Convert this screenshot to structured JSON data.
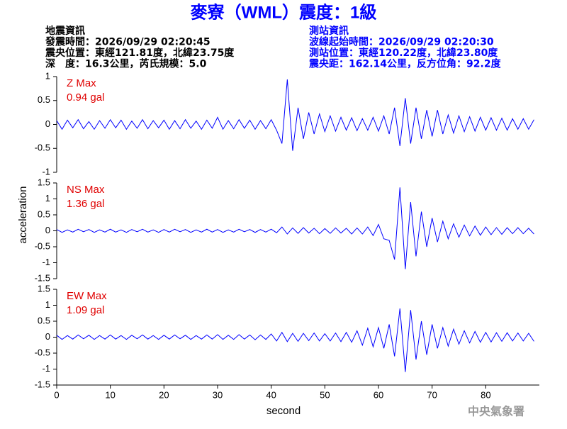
{
  "title": "麥寮（WML）震度：1級",
  "earthquake_info": [
    "地震資訊",
    "發震時間：2026/09/29 02:20:45",
    "震央位置：東經121.81度，北緯23.75度",
    "深　度：16.3公里，芮氏規模：5.0"
  ],
  "station_info": [
    "測站資訊",
    "波線起始時間：2026/09/29 02:20:30",
    "測站位置：東經120.22度，北緯23.80度",
    "震央距：162.14公里，反方位角：92.2度"
  ],
  "y_label": "acceleration",
  "x_label": "second",
  "footer": "中央氣象署",
  "chart_data": [
    {
      "type": "line",
      "annotations": [
        "Z Max",
        "0.94 gal"
      ],
      "annotation_color": "#e00000",
      "xlim": [
        0,
        90
      ],
      "ylim": [
        -1,
        1
      ],
      "yticks": [
        -1,
        -0.5,
        0,
        0.5,
        1
      ],
      "x": [
        0,
        1,
        2,
        3,
        4,
        5,
        6,
        7,
        8,
        9,
        10,
        11,
        12,
        13,
        14,
        15,
        16,
        17,
        18,
        19,
        20,
        21,
        22,
        23,
        24,
        25,
        26,
        27,
        28,
        29,
        30,
        31,
        32,
        33,
        34,
        35,
        36,
        37,
        38,
        39,
        40,
        41,
        42,
        43,
        44,
        45,
        46,
        47,
        48,
        49,
        50,
        51,
        52,
        53,
        54,
        55,
        56,
        57,
        58,
        59,
        60,
        61,
        62,
        63,
        64,
        65,
        66,
        67,
        68,
        69,
        70,
        71,
        72,
        73,
        74,
        75,
        76,
        77,
        78,
        79,
        80,
        81,
        82,
        83,
        84,
        85,
        86,
        87,
        88,
        89
      ],
      "series": [
        {
          "name": "Z",
          "color": "#0000ff",
          "values": [
            0.08,
            -0.1,
            0.09,
            -0.07,
            0.1,
            -0.09,
            0.06,
            -0.1,
            0.08,
            -0.08,
            0.1,
            -0.07,
            0.09,
            -0.1,
            0.07,
            -0.08,
            0.1,
            -0.09,
            0.08,
            -0.07,
            0.09,
            -0.1,
            0.08,
            -0.09,
            0.1,
            -0.08,
            0.07,
            -0.1,
            0.09,
            -0.08,
            0.15,
            -0.1,
            0.08,
            -0.09,
            0.1,
            -0.08,
            0.09,
            -0.1,
            0.08,
            -0.09,
            0.1,
            -0.12,
            -0.4,
            0.94,
            -0.55,
            0.35,
            -0.3,
            0.25,
            -0.2,
            0.22,
            -0.15,
            0.18,
            -0.14,
            0.15,
            -0.12,
            0.14,
            -0.13,
            0.12,
            -0.12,
            0.15,
            -0.14,
            0.18,
            -0.2,
            0.35,
            -0.45,
            0.55,
            -0.4,
            0.35,
            -0.3,
            0.3,
            -0.25,
            0.3,
            -0.2,
            0.2,
            -0.18,
            0.18,
            -0.15,
            0.16,
            -0.14,
            0.15,
            -0.12,
            0.14,
            -0.12,
            0.13,
            -0.12,
            0.12,
            -0.1,
            0.12,
            -0.1,
            0.1
          ]
        }
      ]
    },
    {
      "type": "line",
      "annotations": [
        "NS Max",
        "1.36 gal"
      ],
      "annotation_color": "#e00000",
      "xlim": [
        0,
        90
      ],
      "ylim": [
        -1.5,
        1.5
      ],
      "yticks": [
        -1.5,
        -1,
        -0.5,
        0,
        0.5,
        1,
        1.5
      ],
      "x": [
        0,
        1,
        2,
        3,
        4,
        5,
        6,
        7,
        8,
        9,
        10,
        11,
        12,
        13,
        14,
        15,
        16,
        17,
        18,
        19,
        20,
        21,
        22,
        23,
        24,
        25,
        26,
        27,
        28,
        29,
        30,
        31,
        32,
        33,
        34,
        35,
        36,
        37,
        38,
        39,
        40,
        41,
        42,
        43,
        44,
        45,
        46,
        47,
        48,
        49,
        50,
        51,
        52,
        53,
        54,
        55,
        56,
        57,
        58,
        59,
        60,
        61,
        62,
        63,
        64,
        65,
        66,
        67,
        68,
        69,
        70,
        71,
        72,
        73,
        74,
        75,
        76,
        77,
        78,
        79,
        80,
        81,
        82,
        83,
        84,
        85,
        86,
        87,
        88,
        89
      ],
      "series": [
        {
          "name": "NS",
          "color": "#0000ff",
          "values": [
            0.04,
            -0.05,
            0.03,
            -0.04,
            0.05,
            -0.03,
            0.04,
            -0.05,
            0.03,
            -0.04,
            0.05,
            -0.04,
            0.03,
            -0.05,
            0.04,
            -0.03,
            0.05,
            -0.04,
            0.03,
            -0.05,
            0.04,
            -0.04,
            0.05,
            -0.03,
            0.04,
            -0.05,
            0.03,
            -0.04,
            0.05,
            -0.04,
            0.04,
            -0.05,
            0.03,
            -0.04,
            0.05,
            -0.03,
            0.04,
            -0.05,
            0.04,
            -0.04,
            0.05,
            -0.06,
            0.12,
            -0.1,
            0.09,
            -0.08,
            0.1,
            -0.07,
            0.08,
            -0.09,
            0.07,
            -0.08,
            0.09,
            -0.07,
            0.08,
            -0.1,
            0.09,
            -0.1,
            0.12,
            -0.15,
            0.2,
            -0.25,
            -0.3,
            -0.9,
            1.36,
            -1.2,
            0.9,
            -0.8,
            0.6,
            -0.5,
            0.4,
            -0.35,
            0.3,
            -0.25,
            0.22,
            -0.2,
            0.18,
            -0.16,
            0.15,
            -0.14,
            0.12,
            -0.12,
            0.1,
            -0.11,
            0.1,
            -0.09,
            0.1,
            -0.09,
            0.08,
            -0.1
          ]
        }
      ]
    },
    {
      "type": "line",
      "annotations": [
        "EW Max",
        "1.09 gal"
      ],
      "annotation_color": "#e00000",
      "xlim": [
        0,
        90
      ],
      "ylim": [
        -1.5,
        1.5
      ],
      "yticks": [
        -1.5,
        -1,
        -0.5,
        0,
        0.5,
        1,
        1.5
      ],
      "xticks": [
        0,
        10,
        20,
        30,
        40,
        50,
        60,
        70,
        80
      ],
      "x": [
        0,
        1,
        2,
        3,
        4,
        5,
        6,
        7,
        8,
        9,
        10,
        11,
        12,
        13,
        14,
        15,
        16,
        17,
        18,
        19,
        20,
        21,
        22,
        23,
        24,
        25,
        26,
        27,
        28,
        29,
        30,
        31,
        32,
        33,
        34,
        35,
        36,
        37,
        38,
        39,
        40,
        41,
        42,
        43,
        44,
        45,
        46,
        47,
        48,
        49,
        50,
        51,
        52,
        53,
        54,
        55,
        56,
        57,
        58,
        59,
        60,
        61,
        62,
        63,
        64,
        65,
        66,
        67,
        68,
        69,
        70,
        71,
        72,
        73,
        74,
        75,
        76,
        77,
        78,
        79,
        80,
        81,
        82,
        83,
        84,
        85,
        86,
        87,
        88,
        89
      ],
      "series": [
        {
          "name": "EW",
          "color": "#0000ff",
          "values": [
            0.06,
            -0.07,
            0.05,
            -0.06,
            0.07,
            -0.05,
            0.06,
            -0.07,
            0.05,
            -0.06,
            0.07,
            -0.06,
            0.05,
            -0.07,
            0.06,
            -0.05,
            0.07,
            -0.06,
            0.05,
            -0.07,
            0.06,
            -0.06,
            0.07,
            -0.05,
            0.06,
            -0.07,
            0.05,
            -0.06,
            0.07,
            -0.06,
            0.08,
            -0.07,
            0.06,
            -0.07,
            0.08,
            -0.06,
            0.07,
            -0.08,
            0.07,
            -0.07,
            0.1,
            -0.12,
            0.15,
            -0.14,
            0.12,
            -0.13,
            0.12,
            -0.11,
            0.13,
            -0.12,
            0.11,
            -0.12,
            0.13,
            -0.14,
            0.15,
            -0.16,
            0.2,
            -0.25,
            0.28,
            -0.3,
            0.3,
            -0.35,
            0.4,
            -0.6,
            0.9,
            -1.09,
            0.85,
            -0.7,
            0.5,
            -0.55,
            0.4,
            -0.35,
            0.3,
            -0.28,
            0.25,
            -0.22,
            0.2,
            -0.18,
            0.18,
            -0.16,
            0.15,
            -0.15,
            0.14,
            -0.13,
            0.14,
            -0.12,
            0.13,
            -0.12,
            0.12,
            -0.13
          ]
        }
      ]
    }
  ]
}
